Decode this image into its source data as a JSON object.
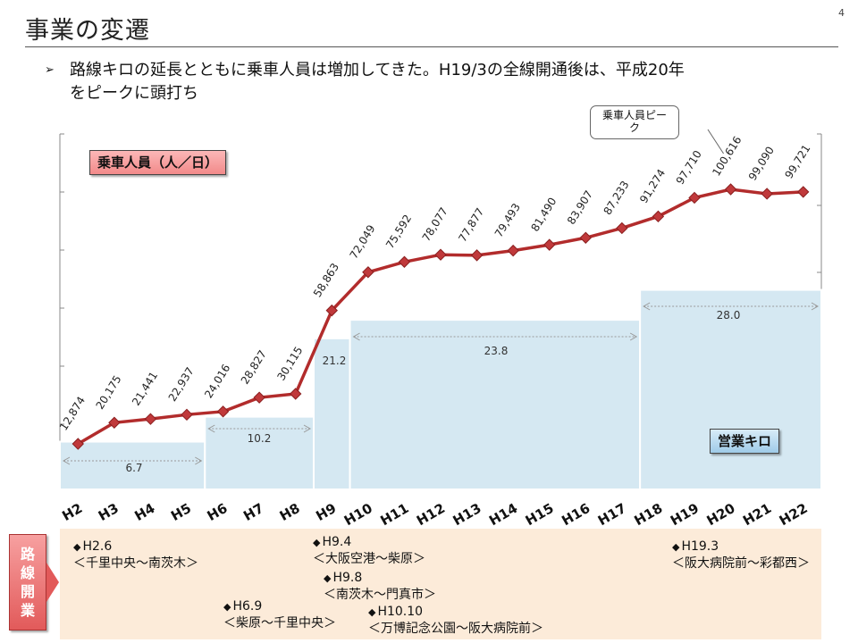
{
  "slide": {
    "title": "事業の変遷",
    "page_number": "4",
    "bullet_lines": [
      "路線キロの延長とともに乗車人員は増加してきた。H19/3の全線開通後は、平成20年",
      "をピークに頭打ち"
    ]
  },
  "labels": {
    "ridership": "乗車人員（人／日）",
    "route_km": "営業キロ",
    "peak_callout_lines": [
      "乗車人員ピー",
      "ク"
    ]
  },
  "colors": {
    "line": "#b22c2c",
    "marker": "#c0393b",
    "area": "#d5e8f2",
    "area_stroke": "#ffffff"
  },
  "chart_data": {
    "type": "line",
    "categories": [
      "H2",
      "H3",
      "H4",
      "H5",
      "H6",
      "H7",
      "H8",
      "H9",
      "H10",
      "H11",
      "H12",
      "H13",
      "H14",
      "H15",
      "H16",
      "H17",
      "H18",
      "H19",
      "H20",
      "H21",
      "H22"
    ],
    "series": [
      {
        "name": "乗車人員（人／日）",
        "values": [
          12874,
          20175,
          21441,
          22937,
          24016,
          28827,
          30115,
          58863,
          72049,
          75592,
          78077,
          77877,
          79493,
          81490,
          83907,
          87233,
          91274,
          97710,
          100616,
          99090,
          99721
        ],
        "labels": [
          "12,874",
          "20,175",
          "21,441",
          "22,937",
          "24,016",
          "28,827",
          "30,115",
          "58,863",
          "72,049",
          "75,592",
          "78,077",
          "77,877",
          "79,493",
          "81,490",
          "83,907",
          "87,233",
          "91,274",
          "97,710",
          "100,616",
          "99,090",
          "99,721"
        ]
      }
    ],
    "route_km": {
      "name": "営業キロ",
      "steps": [
        {
          "from": "H2",
          "to": "H5",
          "value": 6.7,
          "label": "6.7"
        },
        {
          "from": "H6",
          "to": "H8",
          "value": 10.2,
          "label": "10.2"
        },
        {
          "from": "H9",
          "to": "H9",
          "value": 21.2,
          "label": "21.2"
        },
        {
          "from": "H10",
          "to": "H17",
          "value": 23.8,
          "label": "23.8"
        },
        {
          "from": "H18",
          "to": "H22",
          "value": 28.0,
          "label": "28.0"
        }
      ]
    },
    "peak": {
      "category": "H20",
      "value": 100616
    }
  },
  "route_openings": [
    {
      "date": "H2.6",
      "section": "＜千里中央～南茨木＞"
    },
    {
      "date": "H6.9",
      "section": "＜柴原～千里中央＞"
    },
    {
      "date": "H9.4",
      "section": "＜大阪空港～柴原＞"
    },
    {
      "date": "H9.8",
      "section": "＜南茨木～門真市＞"
    },
    {
      "date": "H10.10",
      "section": "＜万博記念公園～阪大病院前＞"
    },
    {
      "date": "H19.3",
      "section": "＜阪大病院前～彩都西＞"
    }
  ],
  "route_panel_label": [
    "路",
    "線",
    "開",
    "業"
  ]
}
